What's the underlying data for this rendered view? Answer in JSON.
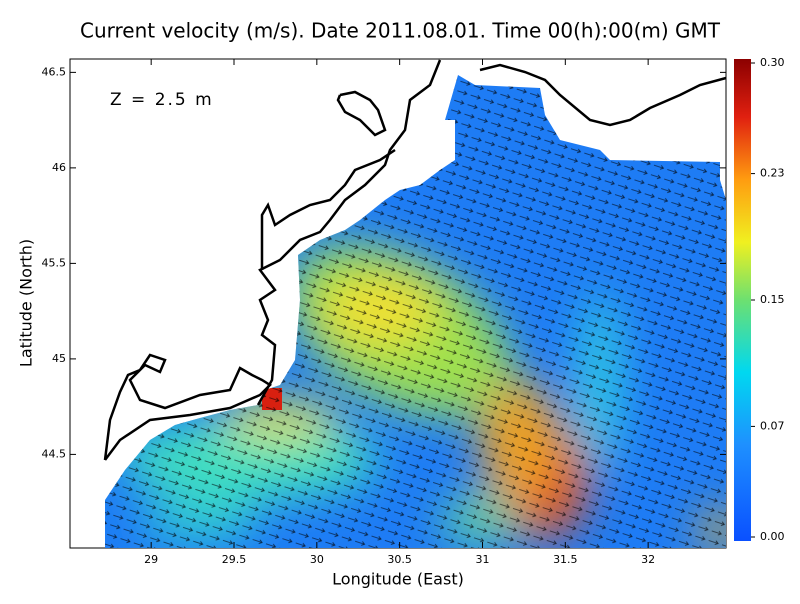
{
  "chart_data": {
    "type": "map",
    "title": "Current velocity (m/s). Date 2011.08.01. Time 00(h):00(m) GMT",
    "annotation": "Z = 2.5 m",
    "x_label": "Longitude (East)",
    "y_label": "Latitude (North)",
    "xlim": [
      28.51,
      32.47
    ],
    "xticks": [
      29,
      29.5,
      30,
      30.5,
      31,
      31.5,
      32
    ],
    "ylim": [
      44.01,
      46.57
    ],
    "yticks": [
      44.5,
      45,
      45.5,
      46,
      46.5
    ],
    "colorbar": {
      "lim": [
        0,
        0.3
      ],
      "ticks": [
        {
          "value": 0,
          "label": "0.00"
        },
        {
          "value": 0.07,
          "label": "0.07"
        },
        0.15,
        {
          "value": 0.23,
          "label": "0.23"
        },
        {
          "value": 0.3,
          "label": "0.30"
        }
      ]
    }
  }
}
